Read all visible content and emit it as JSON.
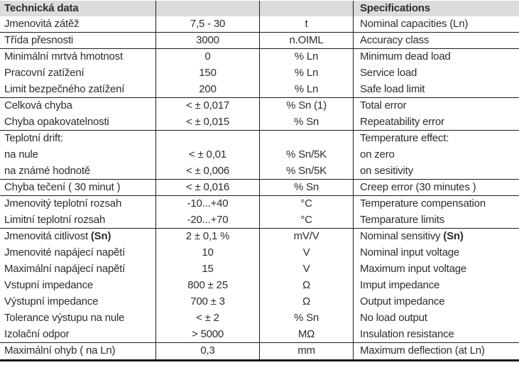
{
  "table": {
    "header": {
      "czech": "Technická data",
      "english": "Specifications"
    },
    "columns": [
      "czech_label",
      "value",
      "unit",
      "english_spec"
    ],
    "colors": {
      "header_background": "#dcdcdc",
      "border": "#1c1c1c",
      "text": "#2d2d2d"
    },
    "rows": [
      {
        "label": "Jmenovitá zátěž",
        "label_bold": "",
        "value": "7,5 - 30",
        "unit": "t",
        "spec": "Nominal capacities (Ln)",
        "spec_bold": "",
        "group_end": true
      },
      {
        "label": "Třída přesnosti",
        "label_bold": "",
        "value": "3000",
        "unit": "n.OIML",
        "spec": "Accuracy class",
        "spec_bold": "",
        "group_end": true
      },
      {
        "label": "Minimální mrtvá hmotnost",
        "label_bold": "",
        "value": "0",
        "unit": "% Ln",
        "spec": "Minimum dead load",
        "spec_bold": "",
        "group_end": false
      },
      {
        "label": "Pracovní zatížení",
        "label_bold": "",
        "value": "150",
        "unit": "% Ln",
        "spec": "Service load",
        "spec_bold": "",
        "group_end": false
      },
      {
        "label": "Limit bezpečného zatížení",
        "label_bold": "",
        "value": "200",
        "unit": "% Ln",
        "spec": "Safe load limit",
        "spec_bold": "",
        "group_end": true
      },
      {
        "label": "Celková chyba",
        "label_bold": "",
        "value": "< ± 0,017",
        "unit": "% Sn (1)",
        "spec": "Total error",
        "spec_bold": "",
        "group_end": false
      },
      {
        "label": "Chyba opakovatelnosti",
        "label_bold": "",
        "value": "< ± 0,015",
        "unit": "% Sn",
        "spec": "Repeatability error",
        "spec_bold": "",
        "group_end": true
      },
      {
        "label": "Teplotní drift:",
        "label_bold": "",
        "value": "",
        "unit": "",
        "spec": "Temperature effect:",
        "spec_bold": "",
        "group_end": false
      },
      {
        "label": "na nule",
        "label_bold": "",
        "value": "< ± 0,01",
        "unit": "% Sn/5K",
        "spec": "on zero",
        "spec_bold": "",
        "group_end": false
      },
      {
        "label": "na známé hodnotě",
        "label_bold": "",
        "value": "< ± 0,006",
        "unit": "% Sn/5K",
        "spec": "on sesitivity",
        "spec_bold": "",
        "group_end": true
      },
      {
        "label": "Chyba tečení ( 30 minut )",
        "label_bold": "",
        "value": "< ± 0,016",
        "unit": "% Sn",
        "spec": "Creep error (30 minutes )",
        "spec_bold": "",
        "group_end": true
      },
      {
        "label": "Jmenovitý teplotní rozsah",
        "label_bold": "",
        "value": "-10...+40",
        "unit": "°C",
        "spec": "Temperature compensation",
        "spec_bold": "",
        "group_end": false
      },
      {
        "label": "Limitní teplotní rozsah",
        "label_bold": "",
        "value": "-20...+70",
        "unit": "°C",
        "spec": "Temparature limits",
        "spec_bold": "",
        "group_end": true
      },
      {
        "label": "Jmenovitá citlivost ",
        "label_bold": "(Sn)",
        "value": "2 ± 0,1 %",
        "unit": "mV/V",
        "spec": "Nominal sensitivy ",
        "spec_bold": "(Sn)",
        "group_end": false
      },
      {
        "label": "Jmenovité napájecí napětí",
        "label_bold": "",
        "value": "10",
        "unit": "V",
        "spec": "Nominal input voltage",
        "spec_bold": "",
        "group_end": false
      },
      {
        "label": "Maximální napájecí napětí",
        "label_bold": "",
        "value": "15",
        "unit": "V",
        "spec": "Maximum input voltage",
        "spec_bold": "",
        "group_end": false
      },
      {
        "label": "Vstupní impedance",
        "label_bold": "",
        "value": "800 ± 25",
        "unit": "Ω",
        "spec": "Imput impedance",
        "spec_bold": "",
        "group_end": false
      },
      {
        "label": "Výstupní impedance",
        "label_bold": "",
        "value": "700 ± 3",
        "unit": "Ω",
        "spec": "Output impedance",
        "spec_bold": "",
        "group_end": false
      },
      {
        "label": "Tolerance výstupu na nule",
        "label_bold": "",
        "value": "< ± 2",
        "unit": "% Sn",
        "spec": "No load output",
        "spec_bold": "",
        "group_end": false
      },
      {
        "label": "Izolační odpor",
        "label_bold": "",
        "value": "> 5000",
        "unit": "MΩ",
        "spec": "Insulation resistance",
        "spec_bold": "",
        "group_end": true
      },
      {
        "label": "Maximální ohyb ( na Ln)",
        "label_bold": "",
        "value": "0,3",
        "unit": "mm",
        "spec": "Maximum deflection (at Ln)",
        "spec_bold": "",
        "group_end": false
      }
    ]
  }
}
